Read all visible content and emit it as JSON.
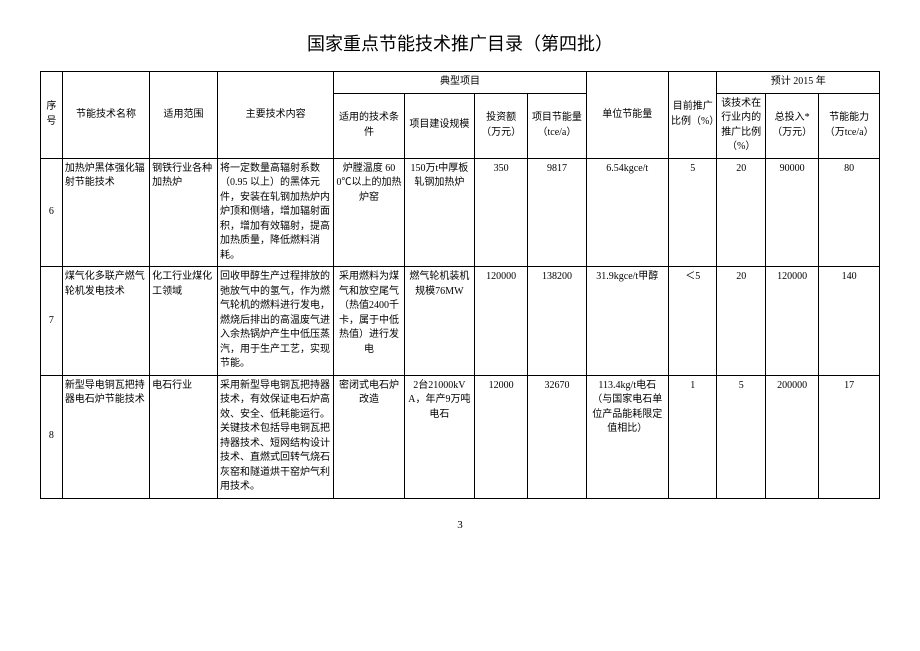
{
  "title": "国家重点节能技术推广目录（第四批）",
  "page_number": "3",
  "colors": {
    "border": "#000000",
    "background": "#ffffff",
    "text": "#000000"
  },
  "headers": {
    "seq": "序号",
    "name": "节能技术名称",
    "scope": "适用范围",
    "content": "主要技术内容",
    "typical": "典型项目",
    "cond": "适用的技术条件",
    "scale": "项目建设规模",
    "invest": "投资额（万元）",
    "save": "项目节能量（tce/a）",
    "unit": "单位节能量",
    "cur": "目前推广比例（%）",
    "forecast": "预计 2015 年",
    "ind": "该技术在行业内的推广比例（%）",
    "total": "总投入*（万元）",
    "cap": "节能能力（万tce/a）"
  },
  "rows": [
    {
      "num": "6",
      "name": "加热炉黑体强化辐射节能技术",
      "scope": "钢铁行业各种加热炉",
      "content": "将一定数量高辐射系数（0.95 以上）的黑体元件，安装在轧钢加热炉内炉顶和侧墙，增加辐射面积，增加有效辐射，提高加热质量，降低燃料消耗。",
      "cond": "炉膛温度 600℃以上的加热炉窑",
      "scale": "150万t中厚板轧钢加热炉",
      "invest": "350",
      "save": "9817",
      "unit": "6.54kgce/t",
      "cur": "5",
      "ind": "20",
      "total": "90000",
      "cap": "80"
    },
    {
      "num": "7",
      "name": "煤气化多联产燃气轮机发电技术",
      "scope": "化工行业煤化工领域",
      "content": "回收甲醇生产过程排放的弛放气中的氢气，作为燃气轮机的燃料进行发电，燃烧后排出的高温废气进入余热锅炉产生中低压蒸汽，用于生产工艺，实现节能。",
      "cond": "采用燃料为煤气和放空尾气（热值2400千卡，属于中低热值）进行发电",
      "scale": "燃气轮机装机规模76MW",
      "invest": "120000",
      "save": "138200",
      "unit": "31.9kgce/t甲醇",
      "cur": "＜5",
      "ind": "20",
      "total": "120000",
      "cap": "140"
    },
    {
      "num": "8",
      "name": "新型导电铜瓦把持器电石炉节能技术",
      "scope": "电石行业",
      "content": "采用新型导电铜瓦把持器技术，有效保证电石炉高效、安全、低耗能运行。关键技术包括导电铜瓦把持器技术、短网结构设计技术、直燃式回转气烧石灰窑和隧道烘干窑炉气利用技术。",
      "cond": "密闭式电石炉改造",
      "scale": "2台21000kVA，年产9万吨电石",
      "invest": "12000",
      "save": "32670",
      "unit": "113.4kg/t电石（与国家电石单位产品能耗限定值相比）",
      "cur": "1",
      "ind": "5",
      "total": "200000",
      "cap": "17"
    }
  ]
}
